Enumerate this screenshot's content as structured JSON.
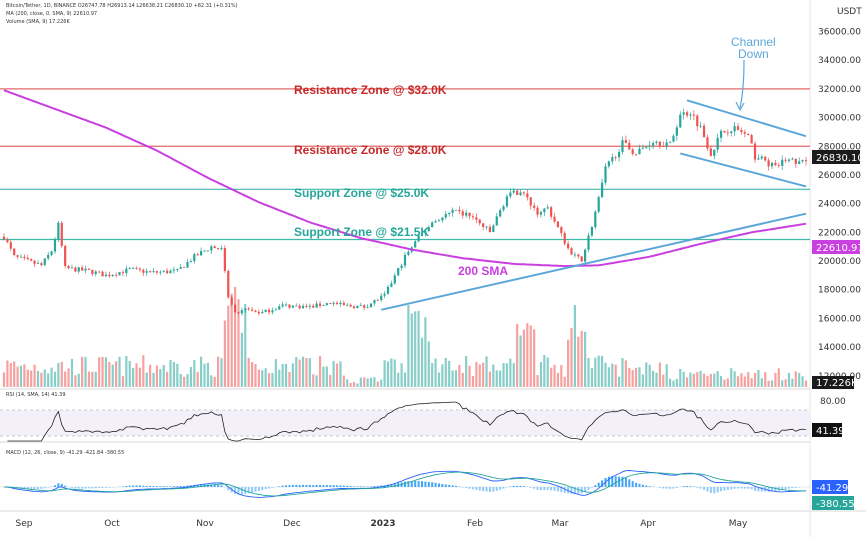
{
  "header": {
    "symbol_line": "Bitcoin/Tether, 1D, BINANCE  O26747.78  H26913.14  L26638.21  C26830.10  +82.31 (+0.31%)",
    "ma_line": "MA (200, close, 0, SMA, 9)  22610.97",
    "volume_line": "Volume (SMA, 9)  17.226K",
    "rsi_line": "RSI (14, SMA, 14)  41.39",
    "macd_line": "MACD (12, 26, close, 9)  -41.29  -421.84  -380.55"
  },
  "currency": "USDT",
  "colors": {
    "up": "#26a69a",
    "down": "#ef5350",
    "sma": "#c93fe0",
    "trend": "#5ba7da",
    "resistance": "#e06a6a",
    "support": "#3fb9a8",
    "resistance_text": "#c62828",
    "support_text": "#26a69a"
  },
  "annotations": {
    "res32": "Resistance Zone @ $32.0K",
    "res28": "Resistance Zone @ $28.0K",
    "sup25": "Support Zone @ $25.0K",
    "sup215": "Support Zone @ $21.5K",
    "sma": "200 SMA",
    "channel_line1": "Channel",
    "channel_line2": "Down"
  },
  "last_values": {
    "price": "26830.10",
    "sma": "22610.97",
    "volume": "17.226K",
    "rsi": "41.39",
    "macd": "-41.29",
    "signal": "-380.55"
  },
  "chart_data": {
    "type": "candlestick",
    "title": "Bitcoin/Tether, 1D, BINANCE",
    "price_axis": {
      "ticks": [
        36000,
        34000,
        32000,
        30000,
        28000,
        26000,
        24000,
        22000,
        20000,
        18000,
        16000,
        14000,
        12000
      ],
      "range": [
        11500,
        36800
      ]
    },
    "time_axis": [
      "Sep",
      "Oct",
      "Nov",
      "Dec",
      "2023",
      "Feb",
      "Mar",
      "Apr",
      "May"
    ],
    "levels": [
      {
        "name": "Resistance Zone @ $32.0K",
        "value": 32000
      },
      {
        "name": "Resistance Zone @ $28.0K",
        "value": 28000
      },
      {
        "name": "Support Zone @ $25.0K",
        "value": 25000
      },
      {
        "name": "Support Zone @ $21.5K",
        "value": 21500
      }
    ],
    "price_path": [
      [
        0,
        21700
      ],
      [
        3,
        20300
      ],
      [
        8,
        19900
      ],
      [
        11,
        19700
      ],
      [
        14,
        20700
      ],
      [
        16,
        22500
      ],
      [
        18,
        19500
      ],
      [
        25,
        19300
      ],
      [
        30,
        19000
      ],
      [
        37,
        19400
      ],
      [
        44,
        19200
      ],
      [
        51,
        19300
      ],
      [
        56,
        20300
      ],
      [
        61,
        21000
      ],
      [
        64,
        20800
      ],
      [
        66,
        17500
      ],
      [
        68,
        16300
      ],
      [
        71,
        16600
      ],
      [
        76,
        16400
      ],
      [
        82,
        16900
      ],
      [
        90,
        16800
      ],
      [
        96,
        17100
      ],
      [
        100,
        16900
      ],
      [
        106,
        16800
      ],
      [
        112,
        17600
      ],
      [
        118,
        20300
      ],
      [
        122,
        21600
      ],
      [
        126,
        22700
      ],
      [
        132,
        23400
      ],
      [
        137,
        23200
      ],
      [
        143,
        22000
      ],
      [
        148,
        24500
      ],
      [
        152,
        24900
      ],
      [
        157,
        23400
      ],
      [
        160,
        23700
      ],
      [
        163,
        22300
      ],
      [
        167,
        20400
      ],
      [
        170,
        20100
      ],
      [
        173,
        22500
      ],
      [
        175,
        24300
      ],
      [
        177,
        26400
      ],
      [
        182,
        28200
      ],
      [
        186,
        27500
      ],
      [
        191,
        28400
      ],
      [
        196,
        28100
      ],
      [
        199,
        30200
      ],
      [
        202,
        30400
      ],
      [
        205,
        29300
      ],
      [
        208,
        27500
      ],
      [
        211,
        28900
      ],
      [
        214,
        29300
      ],
      [
        217,
        29000
      ],
      [
        219,
        28600
      ],
      [
        221,
        27300
      ],
      [
        223,
        27100
      ],
      [
        225,
        26800
      ],
      [
        227,
        26500
      ],
      [
        230,
        27100
      ],
      [
        233,
        26900
      ],
      [
        236,
        26830
      ]
    ],
    "sma200_path": [
      [
        0,
        31900
      ],
      [
        15,
        30600
      ],
      [
        30,
        29300
      ],
      [
        45,
        27700
      ],
      [
        60,
        25800
      ],
      [
        75,
        24100
      ],
      [
        90,
        22700
      ],
      [
        105,
        21600
      ],
      [
        120,
        20800
      ],
      [
        135,
        20200
      ],
      [
        150,
        19800
      ],
      [
        165,
        19650
      ],
      [
        175,
        19700
      ],
      [
        190,
        20300
      ],
      [
        205,
        21200
      ],
      [
        220,
        22000
      ],
      [
        236,
        22600
      ]
    ],
    "trendlines": [
      {
        "name": "rising support",
        "from": [
          111,
          16600
        ],
        "to": [
          236,
          23300
        ]
      },
      {
        "name": "channel top",
        "from": [
          201,
          31200
        ],
        "to": [
          236,
          28700
        ]
      },
      {
        "name": "channel bottom",
        "from": [
          199,
          27500
        ],
        "to": [
          236,
          25200
        ]
      }
    ]
  }
}
